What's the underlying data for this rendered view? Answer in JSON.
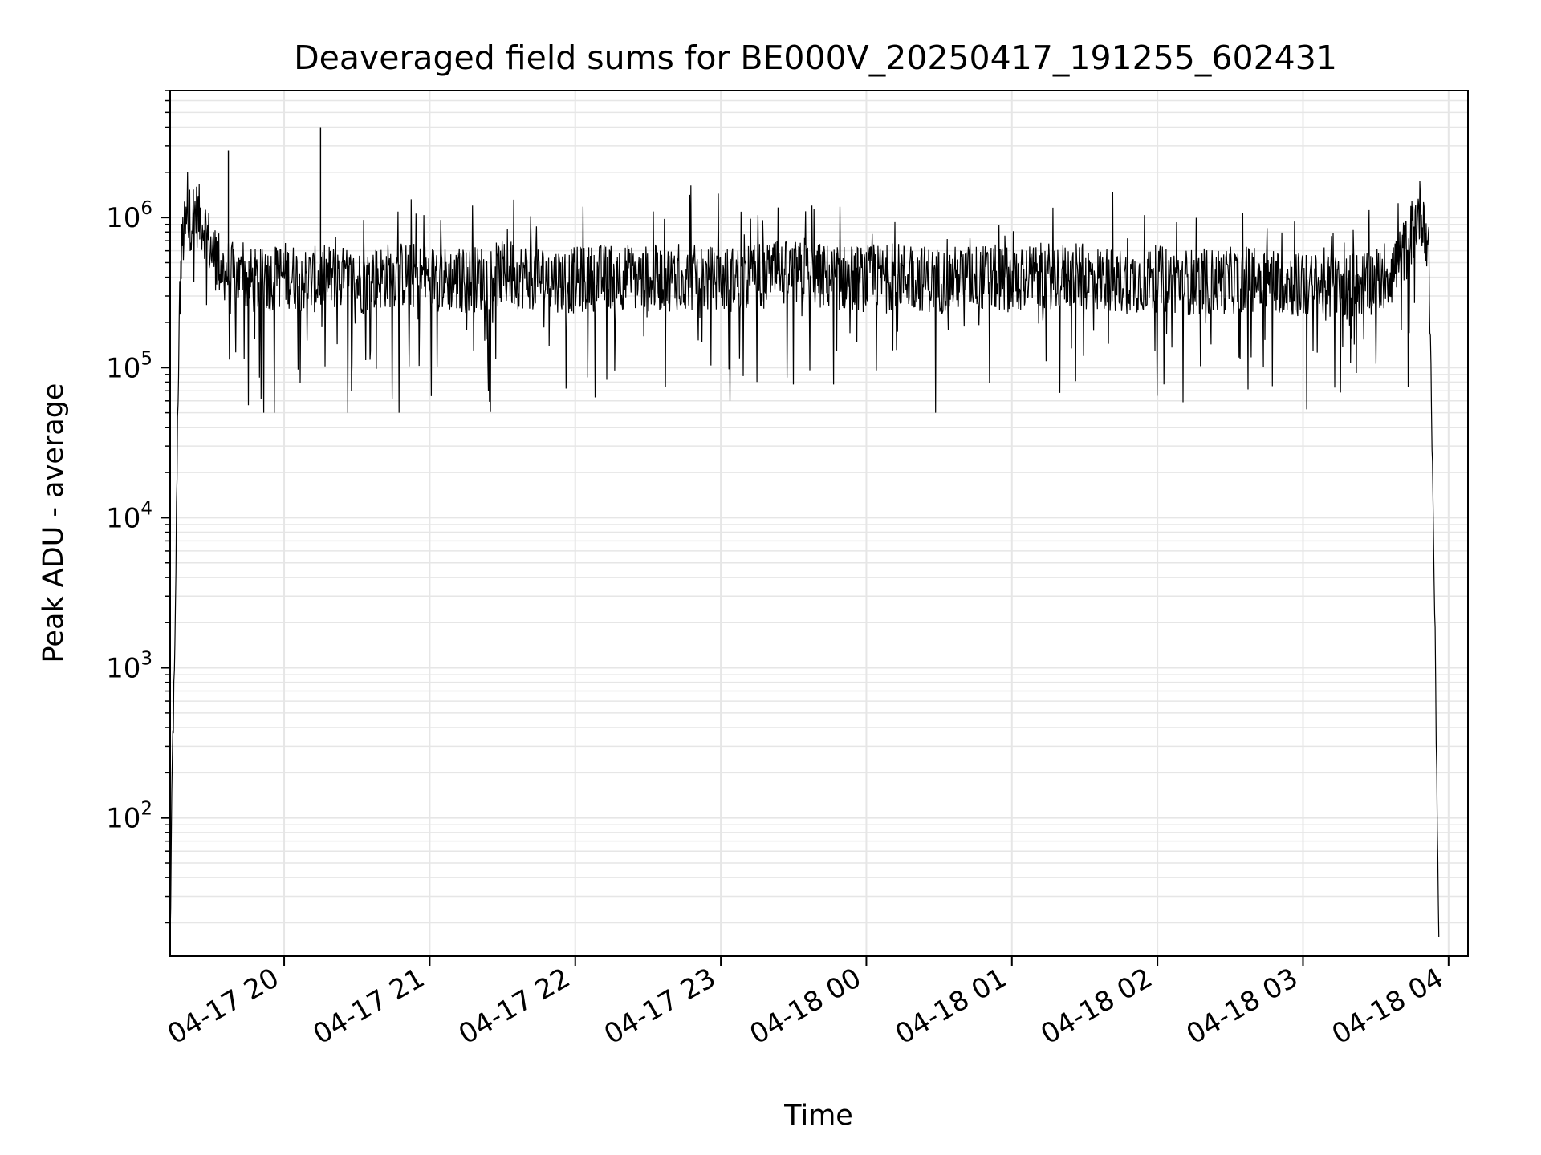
{
  "chart_data": {
    "type": "line",
    "title": "Deaveraged field sums for BE000V_20250417_191255_602431",
    "xlabel": "Time",
    "ylabel": "Peak ADU - average",
    "yscale": "log",
    "ylim": [
      12,
      7000000
    ],
    "xlim": [
      "2025-04-17 19:13",
      "2025-04-18 04:08"
    ],
    "grid": true,
    "grid_color": "#e6e6e6",
    "line_color": "#000000",
    "x_ticks": [
      "04-17 20",
      "04-17 21",
      "04-17 22",
      "04-17 23",
      "04-18 00",
      "04-18 01",
      "04-18 02",
      "04-18 03",
      "04-18 04"
    ],
    "y_ticks": [
      {
        "base": "10",
        "exp": "2",
        "value": 100
      },
      {
        "base": "10",
        "exp": "3",
        "value": 1000
      },
      {
        "base": "10",
        "exp": "4",
        "value": 10000
      },
      {
        "base": "10",
        "exp": "5",
        "value": 100000
      },
      {
        "base": "10",
        "exp": "6",
        "value": 1000000
      }
    ],
    "series": [
      {
        "x": [
          "2025-04-17 19:13",
          "2025-04-17 19:14",
          "2025-04-17 19:15",
          "2025-04-17 19:16",
          "2025-04-17 19:17",
          "2025-04-17 19:18",
          "2025-04-17 19:20",
          "2025-04-17 19:23",
          "2025-04-17 19:27",
          "2025-04-17 19:30",
          "2025-04-17 19:35",
          "2025-04-17 19:40",
          "2025-04-17 19:45",
          "2025-04-17 19:50",
          "2025-04-17 19:55",
          "2025-04-17 20:00",
          "2025-04-17 20:10",
          "2025-04-17 20:20",
          "2025-04-17 20:30",
          "2025-04-17 20:45",
          "2025-04-17 21:00",
          "2025-04-17 21:15",
          "2025-04-17 21:30",
          "2025-04-17 21:45",
          "2025-04-17 22:00",
          "2025-04-17 22:15",
          "2025-04-17 22:30",
          "2025-04-17 22:45",
          "2025-04-17 23:00",
          "2025-04-17 23:15",
          "2025-04-17 23:30",
          "2025-04-17 23:45",
          "2025-04-18 00:00",
          "2025-04-18 00:15",
          "2025-04-18 00:30",
          "2025-04-18 00:45",
          "2025-04-18 01:00",
          "2025-04-18 01:15",
          "2025-04-18 01:30",
          "2025-04-18 01:45",
          "2025-04-18 02:00",
          "2025-04-18 02:15",
          "2025-04-18 02:30",
          "2025-04-18 02:45",
          "2025-04-18 03:00",
          "2025-04-18 03:15",
          "2025-04-18 03:30",
          "2025-04-18 03:40",
          "2025-04-18 03:45",
          "2025-04-18 03:48",
          "2025-04-18 03:50",
          "2025-04-18 03:52",
          "2025-04-18 03:54",
          "2025-04-18 03:55",
          "2025-04-18 03:56"
        ],
        "y": [
          15,
          300,
          1200,
          40000,
          300000,
          700000,
          900000,
          1100000,
          900000,
          600000,
          450000,
          400000,
          380000,
          370000,
          400000,
          420000,
          380000,
          400000,
          370000,
          420000,
          400000,
          380000,
          420000,
          400000,
          380000,
          410000,
          390000,
          400000,
          380000,
          410000,
          420000,
          400000,
          390000,
          410000,
          380000,
          400000,
          390000,
          410000,
          400000,
          380000,
          390000,
          370000,
          380000,
          400000,
          350000,
          340000,
          380000,
          500000,
          800000,
          1100000,
          1000000,
          500000,
          5000,
          300,
          15
        ]
      }
    ],
    "noise": {
      "lower_spikes_min": 50000,
      "upper_spikes_max": 2000000,
      "notable_peaks": [
        {
          "x": "2025-04-17 20:15",
          "y": 4000000
        },
        {
          "x": "2025-04-17 19:37",
          "y": 2800000
        }
      ]
    }
  }
}
